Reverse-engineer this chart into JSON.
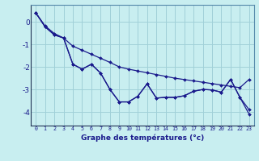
{
  "x": [
    0,
    1,
    2,
    3,
    4,
    5,
    6,
    7,
    8,
    9,
    10,
    11,
    12,
    13,
    14,
    15,
    16,
    17,
    18,
    19,
    20,
    21,
    22,
    23
  ],
  "line_straight": [
    0.4,
    -0.18,
    -0.52,
    -0.72,
    -1.08,
    -1.26,
    -1.44,
    -1.62,
    -1.8,
    -2.0,
    -2.1,
    -2.18,
    -2.26,
    -2.34,
    -2.42,
    -2.5,
    -2.56,
    -2.62,
    -2.68,
    -2.74,
    -2.8,
    -2.86,
    -2.92,
    -2.55
  ],
  "line_zigzag": [
    0.4,
    -0.22,
    -0.58,
    -0.72,
    -1.88,
    -2.1,
    -1.88,
    -2.28,
    -3.0,
    -3.55,
    -3.55,
    -3.3,
    -2.75,
    -3.38,
    -3.35,
    -3.35,
    -3.28,
    -3.08,
    -3.0,
    -3.02,
    -3.12,
    -2.55,
    -3.35,
    -3.9
  ],
  "line_bottom": [
    0.4,
    -0.22,
    -0.58,
    -0.72,
    -1.88,
    -2.1,
    -1.88,
    -2.28,
    -3.0,
    -3.55,
    -3.55,
    -3.3,
    -2.75,
    -3.38,
    -3.35,
    -3.35,
    -3.28,
    -3.08,
    -3.0,
    -3.02,
    -3.12,
    -2.55,
    -3.35,
    -4.1
  ],
  "bg_color": "#c8eef0",
  "grid_color": "#a0d0d8",
  "line_color": "#1a1a8c",
  "xlabel": "Graphe des températures (°c)",
  "xlim": [
    -0.5,
    23.5
  ],
  "ylim": [
    -4.6,
    0.75
  ],
  "yticks": [
    0,
    -1,
    -2,
    -3,
    -4
  ],
  "xticks": [
    0,
    1,
    2,
    3,
    4,
    5,
    6,
    7,
    8,
    9,
    10,
    11,
    12,
    13,
    14,
    15,
    16,
    17,
    18,
    19,
    20,
    21,
    22,
    23
  ]
}
